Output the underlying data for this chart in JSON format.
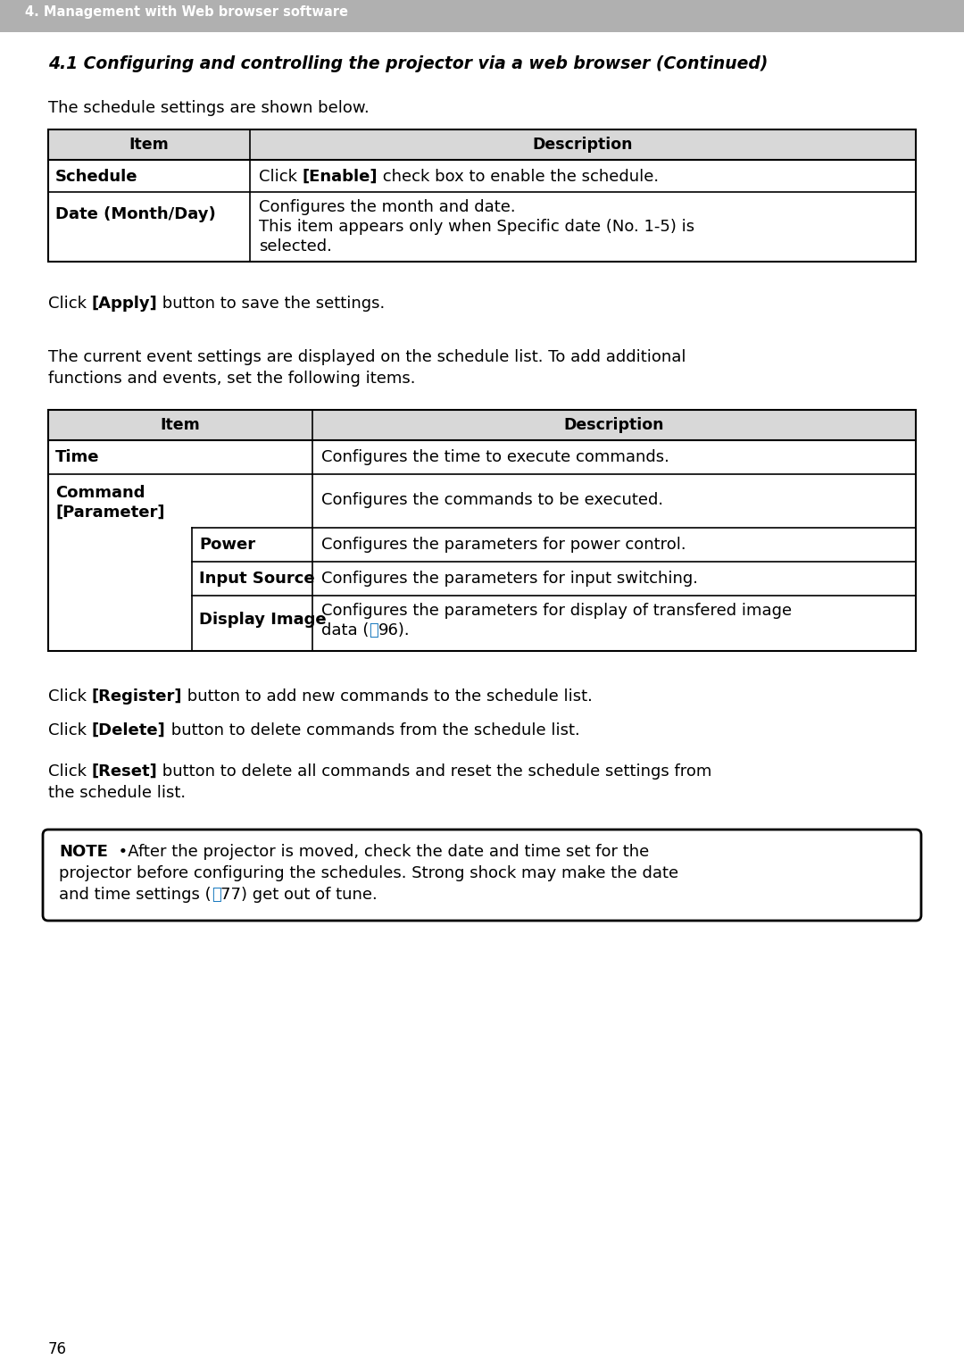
{
  "header_bar_text": "4. Management with Web browser software",
  "header_bar_color": "#b0b0b0",
  "header_bar_text_color": "#ffffff",
  "section_title": "4.1 Configuring and controlling the projector via a web browser (Continued)",
  "intro_text": "The schedule settings are shown below.",
  "table1_headers": [
    "Item",
    "Description"
  ],
  "apply_line": [
    [
      "Click ",
      false
    ],
    [
      "[Apply]",
      true
    ],
    [
      " button to save the settings.",
      false
    ]
  ],
  "event_line1": "The current event settings are displayed on the schedule list. To add additional",
  "event_line2": "functions and events, set the following items.",
  "table2_headers": [
    "Item",
    "Description"
  ],
  "register_line": [
    [
      "Click ",
      false
    ],
    [
      "[Register]",
      true
    ],
    [
      " button to add new commands to the schedule list.",
      false
    ]
  ],
  "delete_line": [
    [
      "Click ",
      false
    ],
    [
      "[Delete]",
      true
    ],
    [
      " button to delete commands from the schedule list.",
      false
    ]
  ],
  "reset_line1": [
    [
      "Click ",
      false
    ],
    [
      "[Reset]",
      true
    ],
    [
      " button to delete all commands and reset the schedule settings from",
      false
    ]
  ],
  "reset_line2": "the schedule list.",
  "note_line1": [
    [
      "NOTE",
      true
    ],
    [
      "  •After the projector is moved, check the date and time set for the",
      false
    ]
  ],
  "note_line2": "projector before configuring the schedules. Strong shock may make the date",
  "note_line3_pre": "and time settings (",
  "note_line3_post": "77) get out of tune.",
  "page_number": "76",
  "bg_color": "#ffffff",
  "text_color": "#000000",
  "table_border_color": "#000000",
  "link_color": "#1a7abf",
  "header_gray": "#c8c8c8"
}
